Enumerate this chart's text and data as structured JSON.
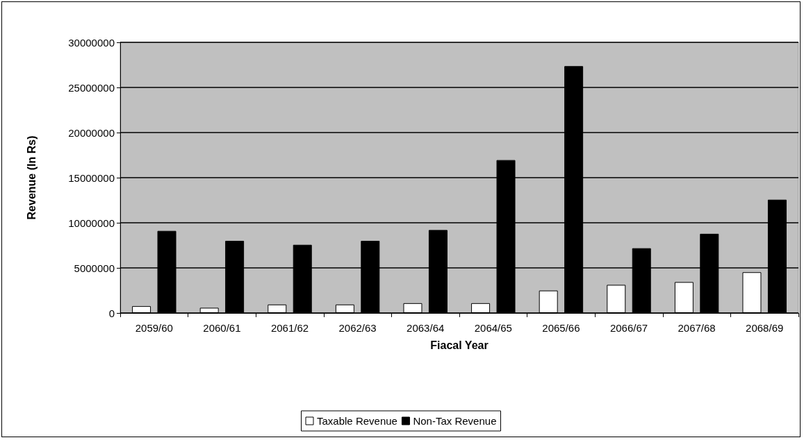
{
  "chart_data": {
    "type": "bar",
    "xlabel": "Fiacal Year",
    "ylabel": "Revenue (In Rs)",
    "categories": [
      "2059/60",
      "2060/61",
      "2061/62",
      "2062/63",
      "2063/64",
      "2064/65",
      "2065/66",
      "2066/67",
      "2067/68",
      "2068/69"
    ],
    "series": [
      {
        "name": "Taxable Revenue",
        "color": "#ffffff",
        "values": [
          760000,
          580000,
          940000,
          940000,
          1090000,
          1090000,
          2490000,
          3120000,
          3430000,
          4520000
        ]
      },
      {
        "name": "Non-Tax Revenue",
        "color": "#000000",
        "values": [
          9100000,
          8000000,
          7560000,
          8000000,
          9200000,
          16950000,
          27360000,
          7180000,
          8780000,
          12560000
        ]
      }
    ],
    "ylim": [
      0,
      30000000
    ],
    "yticks": [
      0,
      5000000,
      10000000,
      15000000,
      20000000,
      25000000,
      30000000
    ],
    "grid": "y",
    "legend": "bottom"
  }
}
